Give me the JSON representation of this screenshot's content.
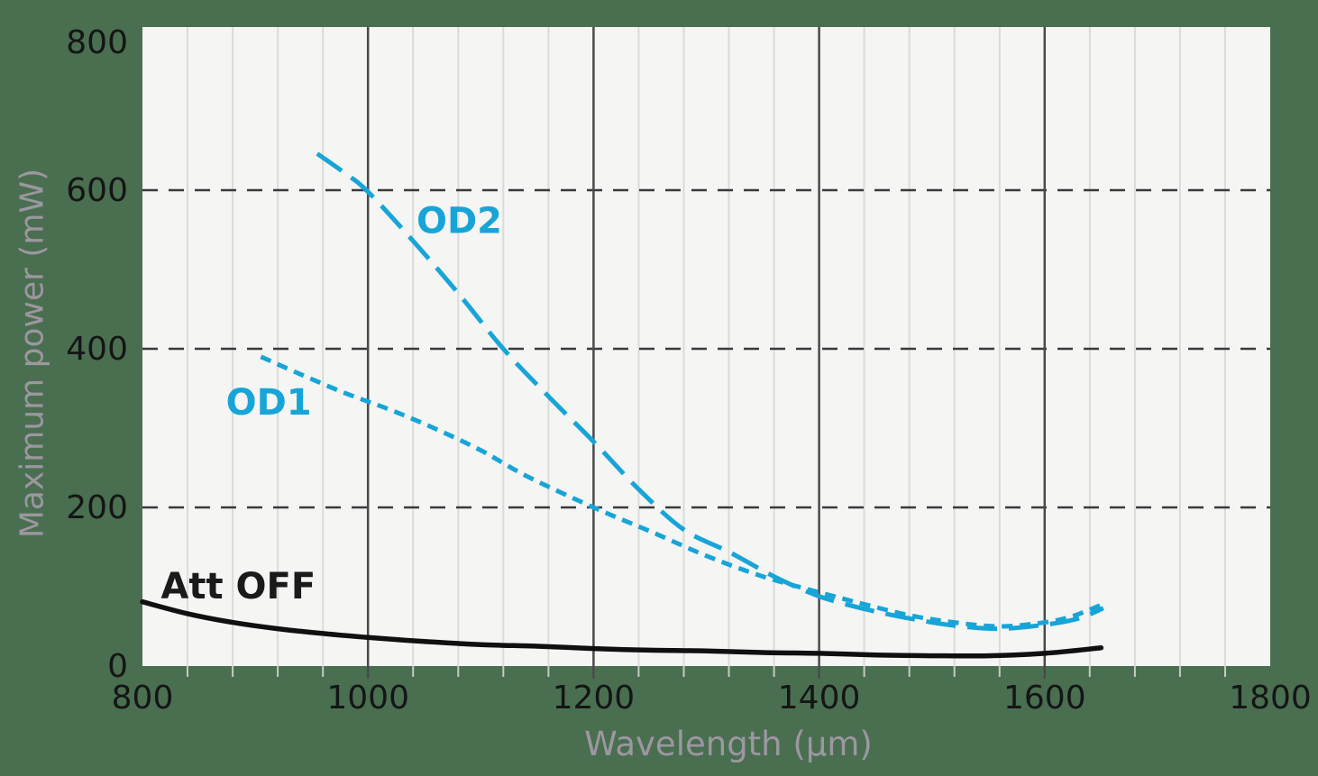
{
  "page": {
    "background_color": "#496F50"
  },
  "chart_data": {
    "type": "line",
    "title": "",
    "xlabel": "Wavelength (µm)",
    "ylabel": "Maximum power (mW)",
    "xlim": [
      800,
      1800
    ],
    "ylim": [
      0,
      800
    ],
    "x_ticks": [
      800,
      1000,
      1200,
      1400,
      1600,
      1800
    ],
    "y_ticks": [
      0,
      200,
      400,
      600,
      800
    ],
    "x_minor_step": 40,
    "grid": {
      "plot_bg": "#F5F5F4",
      "minor_color": "#DBDBD9",
      "major_color": "#4A4A4A",
      "dashed_color": "#3A3A3A",
      "minor_tick_color": "#C7C9C6"
    },
    "tick_label_color": "#151515",
    "axis_title_color": "#9C97A0",
    "legend_position": "inline-labels",
    "series": [
      {
        "name": "Att OFF",
        "label": "Att OFF",
        "label_color": "#1A1A1A",
        "label_x": 885,
        "label_y": 101,
        "color": "#101010",
        "line_style": "solid",
        "points": [
          [
            800,
            81
          ],
          [
            840,
            66
          ],
          [
            880,
            55
          ],
          [
            920,
            47
          ],
          [
            960,
            41
          ],
          [
            1000,
            36
          ],
          [
            1050,
            31
          ],
          [
            1100,
            27
          ],
          [
            1150,
            25
          ],
          [
            1200,
            22
          ],
          [
            1250,
            20
          ],
          [
            1300,
            19
          ],
          [
            1350,
            17
          ],
          [
            1400,
            16
          ],
          [
            1450,
            14
          ],
          [
            1500,
            13
          ],
          [
            1550,
            13
          ],
          [
            1600,
            16
          ],
          [
            1650,
            23
          ]
        ]
      },
      {
        "name": "OD1",
        "label": "OD1",
        "label_color": "#17A5D8",
        "label_x": 912,
        "label_y": 333,
        "color": "#17A5D8",
        "line_style": "dotted",
        "points": [
          [
            905,
            390
          ],
          [
            940,
            368
          ],
          [
            980,
            344
          ],
          [
            1020,
            323
          ],
          [
            1060,
            299
          ],
          [
            1100,
            272
          ],
          [
            1140,
            240
          ],
          [
            1200,
            200
          ],
          [
            1250,
            170
          ],
          [
            1300,
            139
          ],
          [
            1350,
            113
          ],
          [
            1400,
            93
          ],
          [
            1440,
            78
          ],
          [
            1480,
            64
          ],
          [
            1520,
            55
          ],
          [
            1560,
            50
          ],
          [
            1600,
            55
          ],
          [
            1625,
            63
          ],
          [
            1650,
            77
          ]
        ]
      },
      {
        "name": "OD2",
        "label": "OD2",
        "label_color": "#17A5D8",
        "label_x": 1081,
        "label_y": 562,
        "color": "#17A5D8",
        "line_style": "dashed",
        "points": [
          [
            955,
            646
          ],
          [
            980,
            621
          ],
          [
            1000,
            598
          ],
          [
            1040,
            536
          ],
          [
            1080,
            470
          ],
          [
            1120,
            400
          ],
          [
            1160,
            340
          ],
          [
            1200,
            283
          ],
          [
            1240,
            223
          ],
          [
            1280,
            172
          ],
          [
            1320,
            144
          ],
          [
            1360,
            113
          ],
          [
            1400,
            88
          ],
          [
            1440,
            72
          ],
          [
            1480,
            60
          ],
          [
            1520,
            51
          ],
          [
            1560,
            47
          ],
          [
            1600,
            52
          ],
          [
            1630,
            60
          ],
          [
            1652,
            73
          ]
        ]
      }
    ]
  }
}
